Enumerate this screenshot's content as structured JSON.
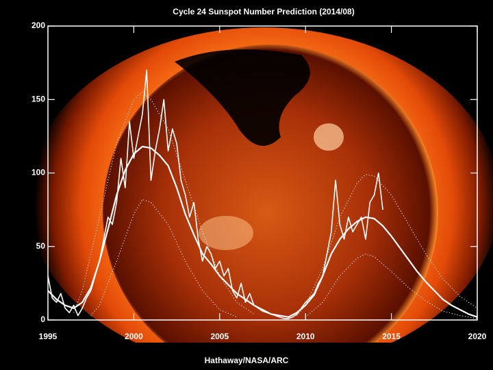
{
  "chart_data": {
    "type": "line",
    "title": "Cycle 24 Sunspot Number Prediction (2014/08)",
    "credit": "Hathaway/NASA/ARC",
    "xlim": [
      1995,
      2020
    ],
    "xticks": [
      1995,
      2000,
      2005,
      2010,
      2015,
      2020
    ],
    "ylim": [
      0,
      200
    ],
    "yticks": [
      0,
      50,
      100,
      150,
      200
    ],
    "series": [
      {
        "color": "#ffffff",
        "style": "solid",
        "width": 1.6,
        "x": [
          1995.0,
          1995.25,
          1995.5,
          1995.75,
          1996.0,
          1996.25,
          1996.5,
          1996.75,
          1997.0,
          1997.25,
          1997.5,
          1997.75,
          1998.0,
          1998.25,
          1998.5,
          1998.75,
          1999.0,
          1999.25,
          1999.5,
          1999.75,
          2000.0,
          2000.25,
          2000.5,
          2000.75,
          2001.0,
          2001.25,
          2001.5,
          2001.75,
          2002.0,
          2002.25,
          2002.5,
          2002.75,
          2003.0,
          2003.25,
          2003.5,
          2003.75,
          2004.0,
          2004.25,
          2004.5,
          2004.75,
          2005.0,
          2005.25,
          2005.5,
          2005.75,
          2006.0,
          2006.25,
          2006.5,
          2006.75,
          2007.0,
          2007.25,
          2007.5,
          2007.75,
          2008.0,
          2008.25,
          2008.5,
          2008.75,
          2009.0,
          2009.25,
          2009.5,
          2009.75,
          2010.0,
          2010.25,
          2010.5,
          2010.75,
          2011.0,
          2011.25,
          2011.5,
          2011.75,
          2012.0,
          2012.25,
          2012.5,
          2012.75,
          2013.0,
          2013.25,
          2013.5,
          2013.75,
          2014.0,
          2014.25,
          2014.5
        ],
        "values": [
          30,
          15,
          12,
          18,
          8,
          5,
          10,
          3,
          8,
          15,
          20,
          30,
          40,
          55,
          70,
          65,
          80,
          110,
          90,
          135,
          110,
          125,
          140,
          170,
          95,
          115,
          130,
          150,
          115,
          130,
          120,
          95,
          85,
          70,
          80,
          55,
          40,
          50,
          45,
          35,
          40,
          30,
          35,
          20,
          15,
          25,
          12,
          18,
          10,
          8,
          6,
          5,
          4,
          3,
          2,
          1,
          1,
          2,
          4,
          8,
          12,
          15,
          18,
          25,
          30,
          45,
          60,
          95,
          65,
          55,
          70,
          60,
          65,
          70,
          55,
          80,
          85,
          100,
          75
        ]
      },
      {
        "color": "#ffffff",
        "style": "solid",
        "width": 2.2,
        "x": [
          1995.0,
          1995.5,
          1996.0,
          1996.5,
          1997.0,
          1997.5,
          1998.0,
          1998.5,
          1999.0,
          1999.5,
          2000.0,
          2000.5,
          2001.0,
          2001.5,
          2002.0,
          2002.5,
          2003.0,
          2003.5,
          2004.0,
          2004.5,
          2005.0,
          2005.5,
          2006.0,
          2006.5,
          2007.0,
          2007.5,
          2008.0,
          2008.5,
          2009.0,
          2009.5,
          2010.0,
          2010.5,
          2011.0,
          2011.5,
          2012.0,
          2012.5,
          2013.0,
          2013.5,
          2014.0,
          2014.5,
          2015.0,
          2015.5,
          2016.0,
          2016.5,
          2017.0,
          2017.5,
          2018.0,
          2018.5,
          2019.0,
          2019.5,
          2020.0
        ],
        "values": [
          20,
          14,
          10,
          8,
          12,
          22,
          40,
          62,
          85,
          102,
          113,
          118,
          117,
          112,
          105,
          90,
          72,
          58,
          45,
          38,
          30,
          24,
          18,
          14,
          10,
          7,
          4,
          3,
          2,
          5,
          10,
          17,
          30,
          45,
          55,
          62,
          67,
          70,
          69,
          64,
          57,
          49,
          41,
          33,
          26,
          20,
          14,
          10,
          7,
          4,
          2
        ]
      },
      {
        "color": "#ffffff",
        "style": "dotted",
        "width": 1.2,
        "x": [
          1996.5,
          1997.0,
          1998.0,
          1999.0,
          2000.0,
          2000.5,
          2001.0,
          2002.0,
          2003.0,
          2004.0,
          2005.0,
          2006.0,
          2007.0
        ],
        "values": [
          5,
          20,
          70,
          120,
          150,
          155,
          150,
          130,
          95,
          60,
          30,
          12,
          4
        ]
      },
      {
        "color": "#ffffff",
        "style": "dotted",
        "width": 1.2,
        "x": [
          1997.5,
          1998.0,
          1999.0,
          2000.0,
          2000.5,
          2001.0,
          2002.0,
          2003.0,
          2004.0,
          2005.0,
          2006.0
        ],
        "values": [
          3,
          10,
          40,
          72,
          82,
          80,
          65,
          40,
          20,
          7,
          2
        ]
      },
      {
        "color": "#ffffff",
        "style": "dotted",
        "width": 1.2,
        "x": [
          2009.5,
          2010.0,
          2011.0,
          2012.0,
          2013.0,
          2013.5,
          2014.0,
          2015.0,
          2016.0,
          2017.0,
          2018.0,
          2019.0,
          2020.0
        ],
        "values": [
          3,
          10,
          35,
          70,
          93,
          99,
          98,
          85,
          65,
          45,
          28,
          16,
          8
        ]
      },
      {
        "color": "#ffffff",
        "style": "dotted",
        "width": 1.2,
        "x": [
          2010.0,
          2011.0,
          2012.0,
          2013.0,
          2013.5,
          2014.0,
          2015.0,
          2016.0,
          2017.0,
          2018.0,
          2019.0,
          2020.0
        ],
        "values": [
          2,
          12,
          30,
          42,
          45,
          43,
          33,
          22,
          13,
          6,
          3,
          1
        ]
      }
    ]
  }
}
